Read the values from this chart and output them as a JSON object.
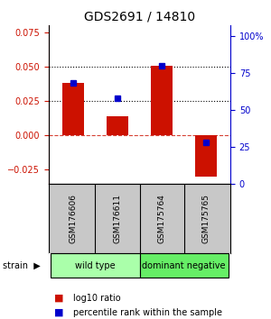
{
  "title": "GDS2691 / 14810",
  "samples": [
    "GSM176606",
    "GSM176611",
    "GSM175764",
    "GSM175765"
  ],
  "log10_ratio": [
    0.038,
    0.014,
    0.051,
    -0.03
  ],
  "percentile_rank": [
    68,
    58,
    80,
    28
  ],
  "groups": [
    {
      "label": "wild type",
      "samples": [
        0,
        1
      ],
      "color": "#aaffaa"
    },
    {
      "label": "dominant negative",
      "samples": [
        2,
        3
      ],
      "color": "#66ee66"
    }
  ],
  "bar_color": "#cc1100",
  "dot_color": "#0000cc",
  "ylim_left": [
    -0.035,
    0.08
  ],
  "yticks_left": [
    -0.025,
    0,
    0.025,
    0.05,
    0.075
  ],
  "ylim_right": [
    0,
    107
  ],
  "yticks_right": [
    0,
    25,
    50,
    75,
    100
  ],
  "hlines": [
    0.025,
    0.05
  ],
  "background_color": "#ffffff",
  "legend_ratio": "log10 ratio",
  "legend_pct": "percentile rank within the sample",
  "bar_width": 0.5
}
